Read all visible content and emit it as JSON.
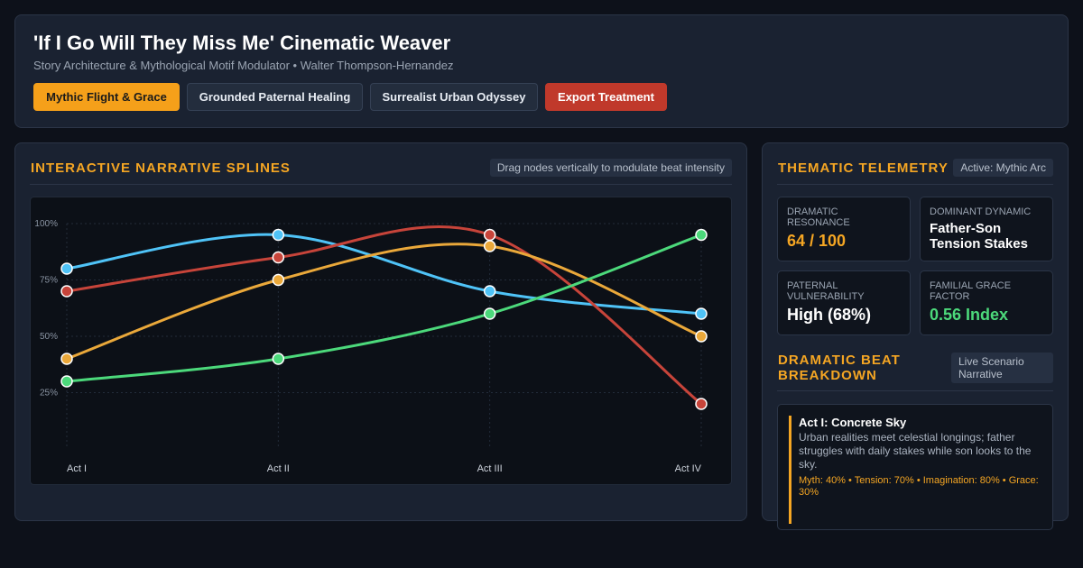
{
  "header": {
    "title": "'If I Go Will They Miss Me' Cinematic Weaver",
    "subtitle": "Story Architecture & Mythological Motif Modulator • Walter Thompson-Hernandez",
    "buttons": [
      "Mythic Flight & Grace",
      "Grounded Paternal Healing",
      "Surrealist Urban Odyssey",
      "Export Treatment"
    ]
  },
  "splines_panel": {
    "title": "INTERACTIVE NARRATIVE SPLINES",
    "hint": "Drag nodes vertically to modulate beat intensity"
  },
  "chart_data": {
    "type": "line",
    "categories": [
      "Act I",
      "Act II",
      "Act III",
      "Act IV"
    ],
    "ylim": [
      0,
      100
    ],
    "yticks": [
      {
        "value": 25,
        "label": "25%"
      },
      {
        "value": 50,
        "label": "50%"
      },
      {
        "value": 75,
        "label": "75%"
      },
      {
        "value": 100,
        "label": "100%"
      }
    ],
    "grid": true,
    "series": [
      {
        "color": "#4fc3f7",
        "values": [
          80,
          95,
          70,
          60
        ]
      },
      {
        "color": "#c7443a",
        "values": [
          70,
          85,
          95,
          20
        ]
      },
      {
        "color": "#eaa83a",
        "values": [
          40,
          75,
          90,
          50
        ]
      },
      {
        "color": "#4cd97b",
        "values": [
          30,
          40,
          60,
          95
        ]
      }
    ]
  },
  "telemetry": {
    "title": "THEMATIC TELEMETRY",
    "badge": "Active: Mythic Arc",
    "cards": [
      {
        "label": "DRAMATIC RESONANCE",
        "value": "64 / 100"
      },
      {
        "label": "DOMINANT DYNAMIC",
        "value": "Father-Son Tension Stakes"
      },
      {
        "label": "PATERNAL VULNERABILITY",
        "value": "High (68%)"
      },
      {
        "label": "FAMILIAL GRACE FACTOR",
        "value": "0.56 Index"
      }
    ]
  },
  "beats": {
    "title": "DRAMATIC BEAT BREAKDOWN",
    "badge": "Live Scenario Narrative",
    "items": [
      {
        "title": "Act I: Concrete Sky",
        "text": "Urban realities meet celestial longings; father struggles with daily stakes while son looks to the sky.",
        "meta": "Myth: 40% • Tension: 70% • Imagination: 80% • Grace: 30%"
      }
    ]
  }
}
